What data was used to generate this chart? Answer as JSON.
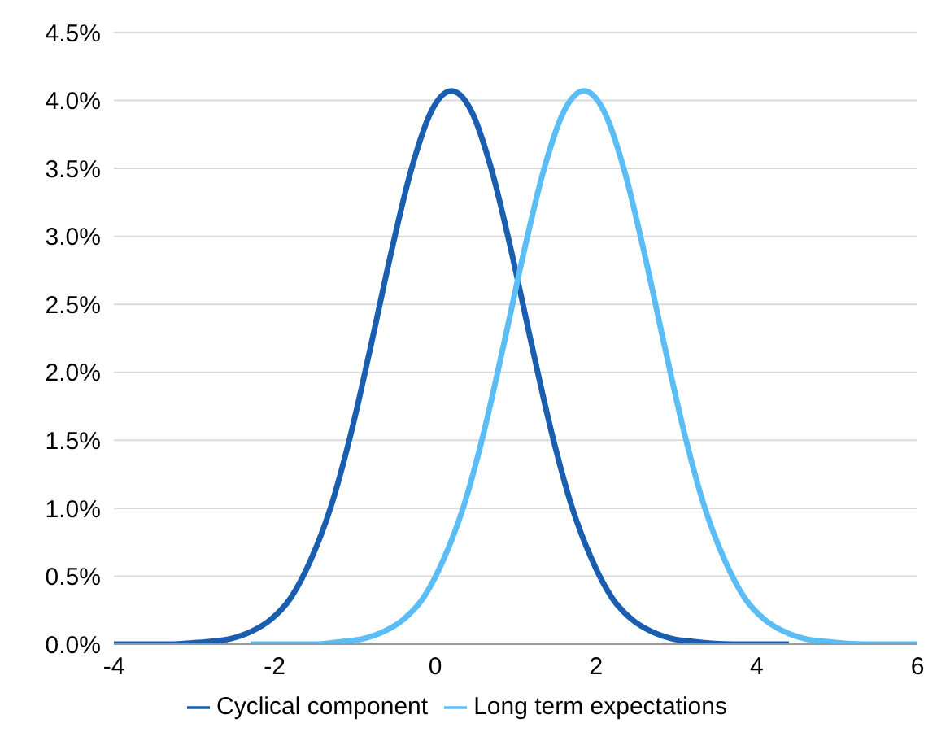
{
  "chart_data": {
    "type": "line",
    "xlim": [
      -4,
      6
    ],
    "xticks": [
      -4,
      -2,
      0,
      2,
      4,
      6
    ],
    "ylim": [
      0,
      4.5
    ],
    "yticks": [
      {
        "value": 0,
        "label": "0.0%"
      },
      {
        "value": 0.5,
        "label": "0.5%"
      },
      {
        "value": 1,
        "label": "1.0%"
      },
      {
        "value": 1.5,
        "label": "1.5%"
      },
      {
        "value": 2,
        "label": "2.0%"
      },
      {
        "value": 2.5,
        "label": "2.5%"
      },
      {
        "value": 3,
        "label": "3.0%"
      },
      {
        "value": 3.5,
        "label": "3.5%"
      },
      {
        "value": 4,
        "label": "4.0%"
      },
      {
        "value": 4.5,
        "label": "4.5%"
      }
    ],
    "grid": "y",
    "legend": "bottom",
    "marker": "none",
    "line_style": "solid",
    "series": [
      {
        "name": "Cyclical component",
        "color": "#1a5eb0",
        "x": [
          -4,
          -3.3,
          -3,
          -2.8,
          -2.55,
          -2.3,
          -2.05,
          -1.8,
          -1.55,
          -1.3,
          -1.05,
          -0.8,
          -0.55,
          -0.3,
          -0.05,
          0.2,
          0.45,
          0.7,
          0.95,
          1.2,
          1.45,
          1.7,
          1.95,
          2.2,
          2.45,
          2.7,
          2.95,
          3.2,
          3.7,
          4.4
        ],
        "values": [
          0,
          0,
          0.01,
          0.02,
          0.04,
          0.09,
          0.18,
          0.34,
          0.62,
          1.01,
          1.55,
          2.2,
          2.88,
          3.49,
          3.92,
          4.07,
          3.92,
          3.49,
          2.88,
          2.2,
          1.55,
          1.01,
          0.62,
          0.34,
          0.18,
          0.09,
          0.04,
          0.02,
          0,
          0
        ]
      },
      {
        "name": "Long term expectations",
        "color": "#5bbdf5",
        "x": [
          -2.3,
          -1.5,
          -1.15,
          -0.9,
          -0.65,
          -0.4,
          -0.15,
          0.1,
          0.35,
          0.6,
          0.85,
          1.1,
          1.35,
          1.6,
          1.85,
          2.1,
          2.35,
          2.6,
          2.85,
          3.1,
          3.35,
          3.6,
          3.85,
          4.1,
          4.35,
          4.6,
          4.85,
          5.35,
          6
        ],
        "values": [
          0,
          0,
          0.02,
          0.04,
          0.09,
          0.18,
          0.34,
          0.62,
          1.01,
          1.55,
          2.2,
          2.88,
          3.49,
          3.92,
          4.07,
          3.92,
          3.49,
          2.88,
          2.2,
          1.55,
          1.01,
          0.62,
          0.34,
          0.18,
          0.09,
          0.04,
          0.02,
          0,
          0
        ]
      }
    ]
  }
}
